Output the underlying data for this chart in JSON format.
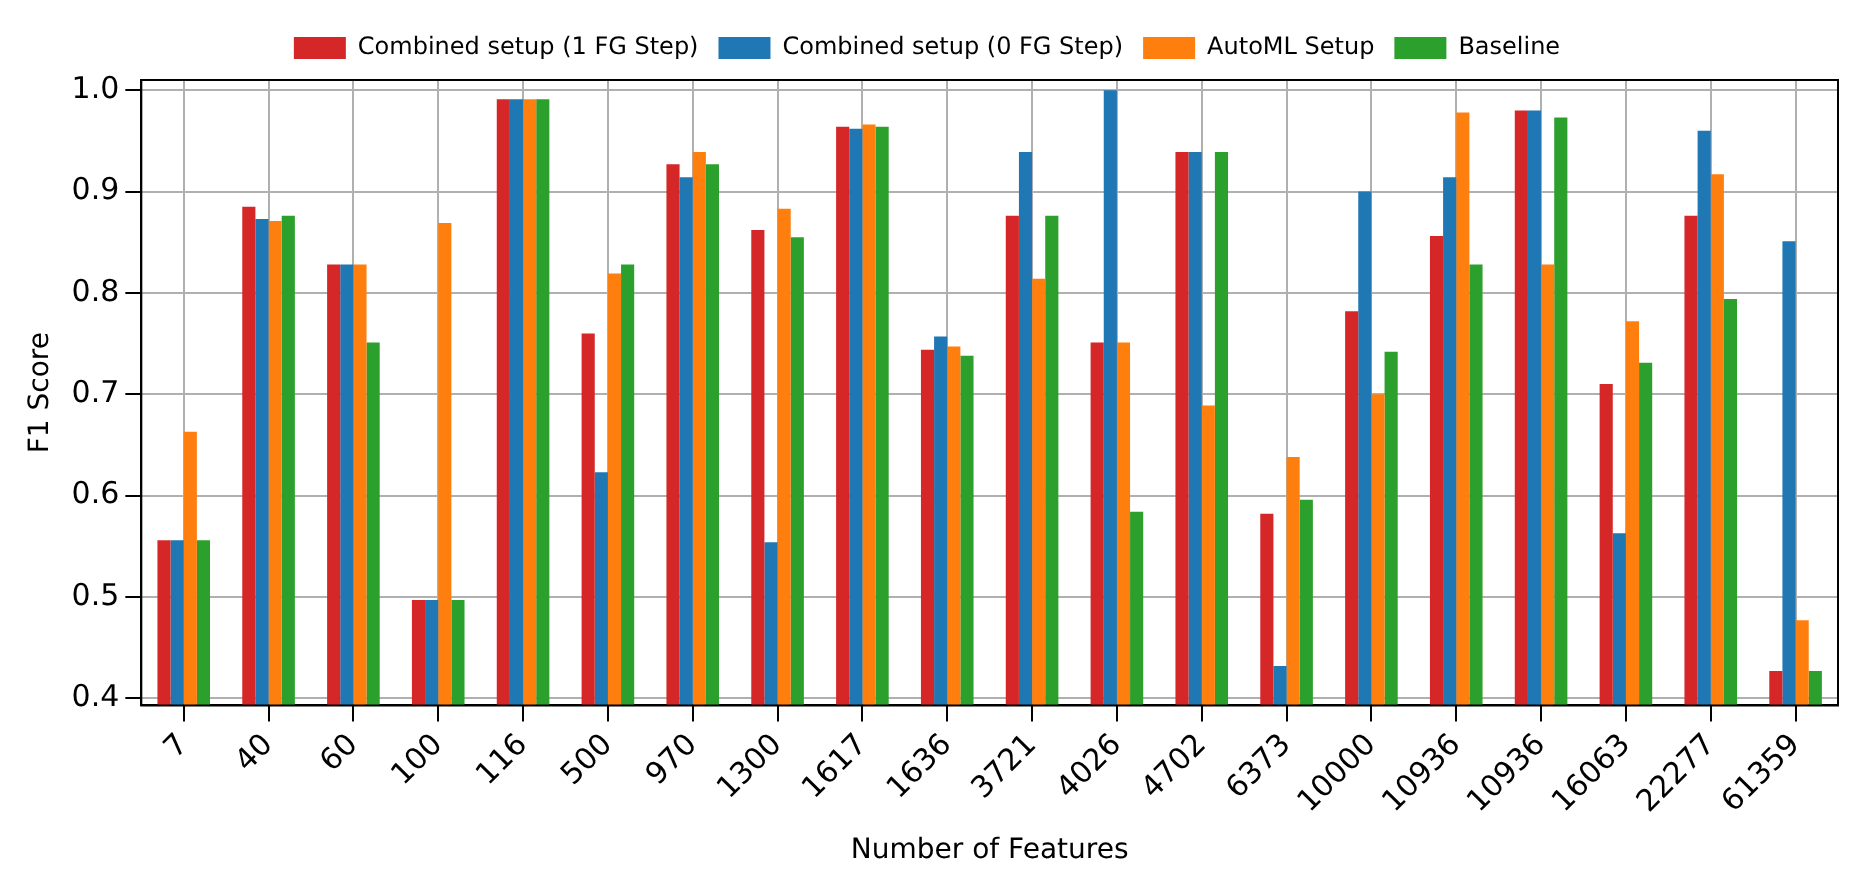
{
  "chart_data": {
    "type": "bar",
    "xlabel": "Number of Features",
    "ylabel": "F1 Score",
    "categories": [
      "7",
      "40",
      "60",
      "100",
      "116",
      "500",
      "970",
      "1300",
      "1617",
      "1636",
      "3721",
      "4026",
      "4702",
      "6373",
      "10000",
      "10936",
      "10936",
      "16063",
      "22277",
      "61359"
    ],
    "series": [
      {
        "name": "Combined setup (1 FG Step)",
        "color": "#d62728",
        "values": [
          0.556,
          0.885,
          0.828,
          0.497,
          0.991,
          0.76,
          0.927,
          0.862,
          0.964,
          0.744,
          0.876,
          0.751,
          0.939,
          0.582,
          0.782,
          0.856,
          0.98,
          0.71,
          0.876,
          0.427
        ]
      },
      {
        "name": "Combined setup (0 FG Step)",
        "color": "#1f77b4",
        "values": [
          0.556,
          0.873,
          0.828,
          0.497,
          0.991,
          0.623,
          0.914,
          0.554,
          0.962,
          0.757,
          0.939,
          1.0,
          0.939,
          0.432,
          0.9,
          0.914,
          0.98,
          0.563,
          0.96,
          0.851
        ]
      },
      {
        "name": "AutoML Setup",
        "color": "#ff7f0e",
        "values": [
          0.663,
          0.871,
          0.828,
          0.869,
          0.991,
          0.819,
          0.939,
          0.883,
          0.966,
          0.747,
          0.814,
          0.751,
          0.689,
          0.638,
          0.7,
          0.978,
          0.828,
          0.772,
          0.917,
          0.477
        ]
      },
      {
        "name": "Baseline",
        "color": "#2ca02c",
        "values": [
          0.556,
          0.876,
          0.751,
          0.497,
          0.991,
          0.828,
          0.927,
          0.855,
          0.964,
          0.738,
          0.876,
          0.584,
          0.939,
          0.596,
          0.742,
          0.828,
          0.973,
          0.731,
          0.794,
          0.427
        ]
      }
    ],
    "ylim": [
      0.393,
      1.01
    ],
    "yticks": [
      0.4,
      0.5,
      0.6,
      0.7,
      0.8,
      0.9,
      {
        "value": 1,
        "label": "1.0"
      }
    ],
    "grid": true,
    "legend": "top"
  }
}
